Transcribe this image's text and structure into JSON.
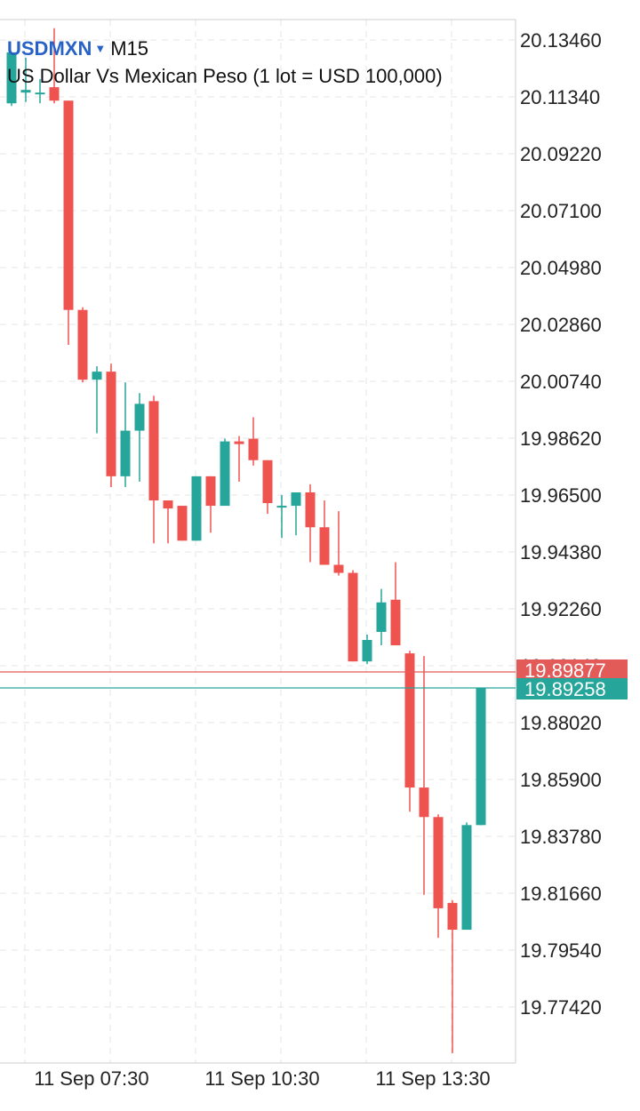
{
  "header": {
    "symbol": "USDMXN",
    "caret": "▼",
    "timeframe": "M15",
    "description": "US Dollar Vs Mexican Peso (1 lot = USD 100,000)"
  },
  "colors": {
    "bull": "#26a69a",
    "bear": "#ef5350",
    "grid": "#e6e6e6",
    "axis_line": "#cccccc",
    "bid_line": "#e35b58",
    "ask_line": "#26a69a",
    "text": "#222222"
  },
  "price_tags": {
    "bid": "19.89877",
    "ask": "19.89258",
    "hidden_behind_tag": "19.90140"
  },
  "chart_data": {
    "type": "candlestick",
    "title": "USDMXN M15",
    "y_ticks": [
      "20.13460",
      "20.11340",
      "20.09220",
      "20.07100",
      "20.04980",
      "20.02860",
      "20.00740",
      "19.98620",
      "19.96500",
      "19.94380",
      "19.92260",
      "19.90140",
      "19.88020",
      "19.85900",
      "19.83780",
      "19.81660",
      "19.79540",
      "19.77420"
    ],
    "x_ticks": [
      "11 Sep 07:30",
      "11 Sep 10:30",
      "11 Sep 13:30"
    ],
    "ylim": [
      19.755,
      20.14
    ],
    "candles": [
      {
        "o": 20.111,
        "h": 20.13,
        "l": 20.11,
        "c": 20.13
      },
      {
        "o": 20.115,
        "h": 20.128,
        "l": 20.1115,
        "c": 20.116
      },
      {
        "o": 20.115,
        "h": 20.12,
        "l": 20.111,
        "c": 20.115
      },
      {
        "o": 20.117,
        "h": 20.139,
        "l": 20.111,
        "c": 20.112
      },
      {
        "o": 20.112,
        "h": 20.112,
        "l": 20.021,
        "c": 20.034
      },
      {
        "o": 20.034,
        "h": 20.035,
        "l": 20.007,
        "c": 20.008
      },
      {
        "o": 20.008,
        "h": 20.013,
        "l": 19.988,
        "c": 20.011
      },
      {
        "o": 20.011,
        "h": 20.014,
        "l": 19.968,
        "c": 19.972
      },
      {
        "o": 19.972,
        "h": 20.007,
        "l": 19.968,
        "c": 19.989
      },
      {
        "o": 19.989,
        "h": 20.003,
        "l": 19.97,
        "c": 19.999
      },
      {
        "o": 20.0,
        "h": 20.002,
        "l": 19.947,
        "c": 19.963
      },
      {
        "o": 19.963,
        "h": 19.963,
        "l": 19.947,
        "c": 19.96
      },
      {
        "o": 19.961,
        "h": 19.961,
        "l": 19.948,
        "c": 19.948
      },
      {
        "o": 19.948,
        "h": 19.972,
        "l": 19.948,
        "c": 19.972
      },
      {
        "o": 19.972,
        "h": 19.972,
        "l": 19.951,
        "c": 19.961
      },
      {
        "o": 19.961,
        "h": 19.986,
        "l": 19.961,
        "c": 19.985
      },
      {
        "o": 19.985,
        "h": 19.987,
        "l": 19.97,
        "c": 19.984
      },
      {
        "o": 19.986,
        "h": 19.994,
        "l": 19.976,
        "c": 19.978
      },
      {
        "o": 19.978,
        "h": 19.978,
        "l": 19.958,
        "c": 19.962
      },
      {
        "o": 19.961,
        "h": 19.965,
        "l": 19.949,
        "c": 19.961
      },
      {
        "o": 19.961,
        "h": 19.966,
        "l": 19.95,
        "c": 19.966
      },
      {
        "o": 19.966,
        "h": 19.969,
        "l": 19.94,
        "c": 19.953
      },
      {
        "o": 19.953,
        "h": 19.963,
        "l": 19.939,
        "c": 19.939
      },
      {
        "o": 19.939,
        "h": 19.959,
        "l": 19.935,
        "c": 19.936
      },
      {
        "o": 19.936,
        "h": 19.937,
        "l": 19.903,
        "c": 19.903
      },
      {
        "o": 19.903,
        "h": 19.913,
        "l": 19.902,
        "c": 19.911
      },
      {
        "o": 19.914,
        "h": 19.93,
        "l": 19.909,
        "c": 19.925
      },
      {
        "o": 19.926,
        "h": 19.94,
        "l": 19.909,
        "c": 19.909
      },
      {
        "o": 19.906,
        "h": 19.907,
        "l": 19.847,
        "c": 19.856
      },
      {
        "o": 19.856,
        "h": 19.905,
        "l": 19.816,
        "c": 19.845
      },
      {
        "o": 19.845,
        "h": 19.846,
        "l": 19.8,
        "c": 19.811
      },
      {
        "o": 19.813,
        "h": 19.814,
        "l": 19.757,
        "c": 19.803
      },
      {
        "o": 19.803,
        "h": 19.843,
        "l": 19.803,
        "c": 19.842
      },
      {
        "o": 19.842,
        "h": 19.893,
        "l": 19.842,
        "c": 19.893
      }
    ]
  }
}
